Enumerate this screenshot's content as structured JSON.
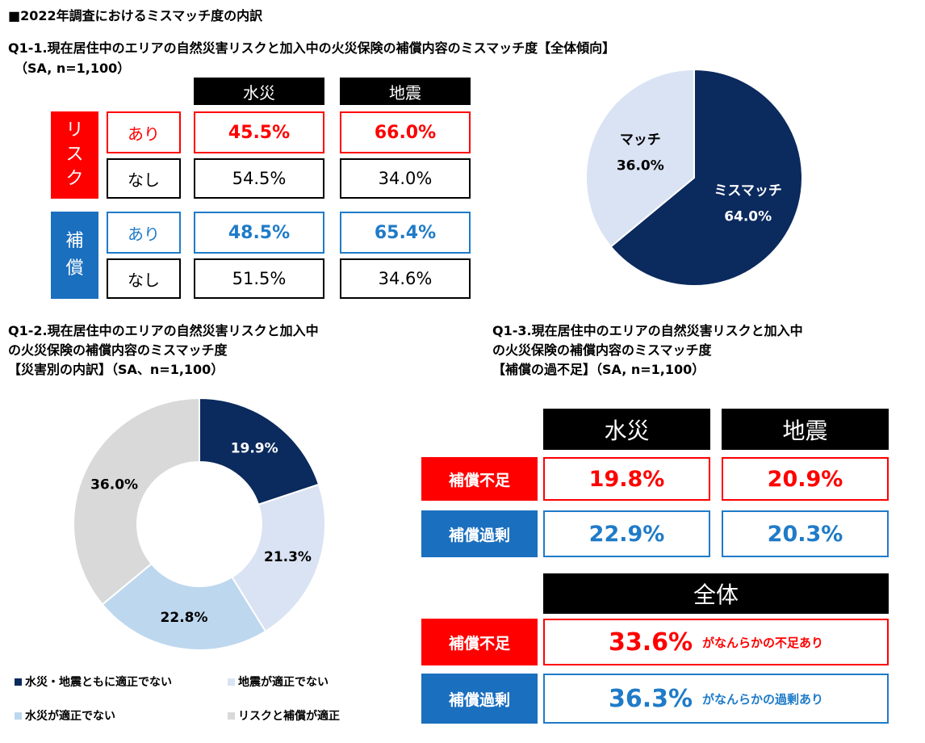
{
  "page_title": "■2022年調査におけるミスマッチ度の内訳",
  "q1_1": {
    "title": "Q1-1.現在居住中のエリアの自然災害リスクと加入中の火災保険の補償内容のミスマッチ度【全体傾向】",
    "subtitle": "（SA, n=1,100）",
    "col_headers": [
      "水災",
      "地震"
    ],
    "risk_label_chars": [
      "リ",
      "ス",
      "ク"
    ],
    "cover_label_chars": [
      "補",
      "償"
    ],
    "yes_label": "あり",
    "no_label": "なし",
    "risk_yes": [
      "45.5%",
      "66.0%"
    ],
    "risk_no": [
      "54.5%",
      "34.0%"
    ],
    "cover_yes": [
      "48.5%",
      "65.4%"
    ],
    "cover_no": [
      "51.5%",
      "34.6%"
    ]
  },
  "q1_2": {
    "title_lines": [
      "Q1-2.現在居住中のエリアの自然災害リスクと加入中",
      "の火災保険の補償内容のミスマッチ度",
      "【災害別の内訳】（SA、n=1,100）"
    ]
  },
  "q1_3": {
    "title_lines": [
      "Q1-3.現在居住中のエリアの自然災害リスクと加入中",
      "の火災保険の補償内容のミスマッチ度",
      "【補償の過不足】（SA, n=1,100）"
    ],
    "col_headers": [
      "水災",
      "地震"
    ],
    "row_labels": [
      "補償不足",
      "補償過剰"
    ],
    "shortage": [
      "19.8%",
      "20.9%"
    ],
    "excess": [
      "22.9%",
      "20.3%"
    ],
    "total_header": "全体",
    "total_shortage_value": "33.6%",
    "total_shortage_note": "がなんらかの不足あり",
    "total_excess_value": "36.3%",
    "total_excess_note": "がなんらかの過剰あり"
  },
  "chart_data": [
    {
      "type": "pie",
      "title": "Q1-1 全体傾向",
      "categories": [
        "ミスマッチ",
        "マッチ"
      ],
      "values": [
        64.0,
        36.0
      ],
      "labels": [
        "64.0%",
        "36.0%"
      ],
      "colors": [
        "#0b2a5e",
        "#dae3f3"
      ]
    },
    {
      "type": "pie",
      "title": "Q1-2 災害別の内訳",
      "donut": true,
      "categories": [
        "水災・地震ともに適正でない",
        "地震が適正でない",
        "水災が適正でない",
        "リスクと補償が適正"
      ],
      "values": [
        19.9,
        21.3,
        22.8,
        36.0
      ],
      "labels": [
        "19.9%",
        "21.3%",
        "22.8%",
        "36.0%"
      ],
      "colors": [
        "#0b2a5e",
        "#dae3f3",
        "#bdd7ee",
        "#d9d9d9"
      ],
      "legend_position": "bottom"
    }
  ]
}
